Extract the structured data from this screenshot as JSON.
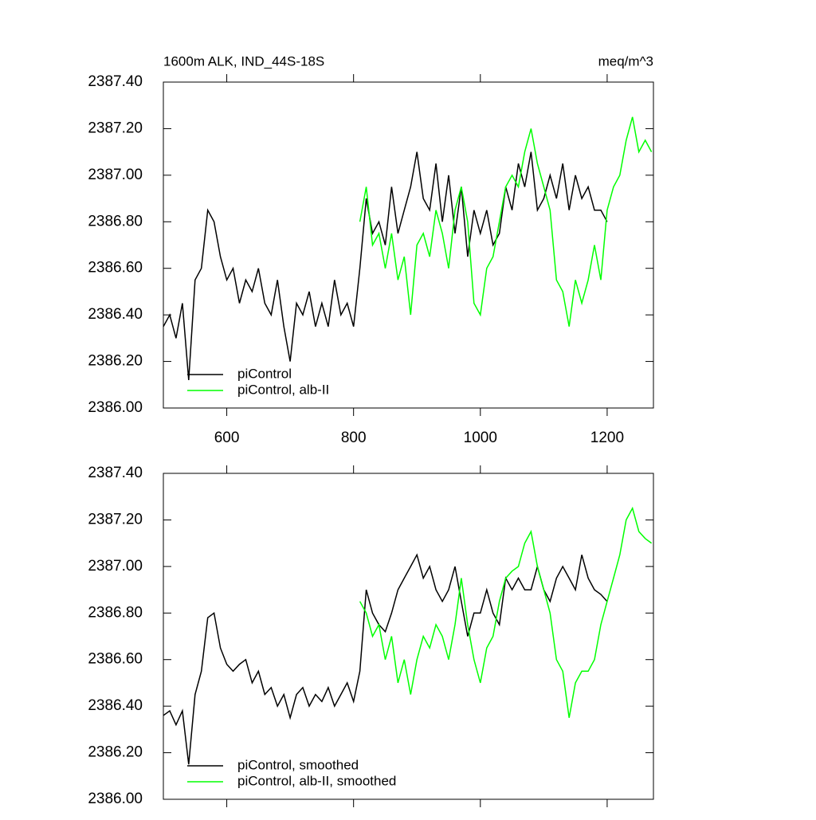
{
  "chart_data": [
    {
      "type": "line",
      "title": "1600m ALK, IND_44S-18S",
      "units": "meq/m^3",
      "xlim": [
        500,
        1273
      ],
      "xticks": [
        600,
        800,
        1000,
        1200
      ],
      "xtick_labels": true,
      "ylim": [
        2386.0,
        2387.4
      ],
      "yticks": [
        {
          "value": 2386.0,
          "label": "2386.00"
        },
        {
          "value": 2386.2,
          "label": "2386.20"
        },
        {
          "value": 2386.4,
          "label": "2386.40"
        },
        {
          "value": 2386.6,
          "label": "2386.60"
        },
        {
          "value": 2386.8,
          "label": "2386.80"
        },
        {
          "value": 2387.0,
          "label": "2387.00"
        },
        {
          "value": 2387.2,
          "label": "2387.20"
        },
        {
          "value": 2387.4,
          "label": "2387.40"
        }
      ],
      "legend": "bottom-left",
      "series": [
        {
          "name": "piControl",
          "color": "#000000",
          "x": [
            500,
            510,
            520,
            530,
            540,
            550,
            560,
            570,
            580,
            590,
            600,
            610,
            620,
            630,
            640,
            650,
            660,
            670,
            680,
            690,
            700,
            710,
            720,
            730,
            740,
            750,
            760,
            770,
            780,
            790,
            800,
            810,
            820,
            830,
            840,
            850,
            860,
            870,
            880,
            890,
            900,
            910,
            920,
            930,
            940,
            950,
            960,
            970,
            980,
            990,
            1000,
            1010,
            1020,
            1030,
            1040,
            1050,
            1060,
            1070,
            1080,
            1090,
            1100,
            1110,
            1120,
            1130,
            1140,
            1150,
            1160,
            1170,
            1180,
            1190,
            1200
          ],
          "values": [
            2386.35,
            2386.4,
            2386.3,
            2386.45,
            2386.12,
            2386.55,
            2386.6,
            2386.85,
            2386.8,
            2386.65,
            2386.55,
            2386.6,
            2386.45,
            2386.55,
            2386.5,
            2386.6,
            2386.45,
            2386.4,
            2386.55,
            2386.35,
            2386.2,
            2386.45,
            2386.4,
            2386.5,
            2386.35,
            2386.45,
            2386.35,
            2386.55,
            2386.4,
            2386.45,
            2386.35,
            2386.6,
            2386.9,
            2386.75,
            2386.8,
            2386.7,
            2386.95,
            2386.75,
            2386.85,
            2386.95,
            2387.1,
            2386.9,
            2386.85,
            2387.05,
            2386.8,
            2387.0,
            2386.75,
            2386.95,
            2386.65,
            2386.85,
            2386.75,
            2386.85,
            2386.7,
            2386.75,
            2386.95,
            2386.85,
            2387.05,
            2386.95,
            2387.1,
            2386.85,
            2386.9,
            2387.0,
            2386.9,
            2387.05,
            2386.85,
            2387.0,
            2386.9,
            2386.95,
            2386.85,
            2386.85,
            2386.8
          ]
        },
        {
          "name": "piControl, alb-II",
          "color": "#00ff00",
          "x": [
            810,
            820,
            830,
            840,
            850,
            860,
            870,
            880,
            890,
            900,
            910,
            920,
            930,
            940,
            950,
            960,
            970,
            980,
            990,
            1000,
            1010,
            1020,
            1030,
            1040,
            1050,
            1060,
            1070,
            1080,
            1090,
            1100,
            1110,
            1120,
            1130,
            1140,
            1150,
            1160,
            1170,
            1180,
            1190,
            1200,
            1210,
            1220,
            1230,
            1240,
            1250,
            1260,
            1270
          ],
          "values": [
            2386.8,
            2386.95,
            2386.7,
            2386.75,
            2386.6,
            2386.75,
            2386.55,
            2386.65,
            2386.4,
            2386.7,
            2386.75,
            2386.65,
            2386.85,
            2386.75,
            2386.6,
            2386.85,
            2386.95,
            2386.8,
            2386.45,
            2386.4,
            2386.6,
            2386.65,
            2386.8,
            2386.95,
            2387.0,
            2386.95,
            2387.1,
            2387.2,
            2387.05,
            2386.95,
            2386.85,
            2386.55,
            2386.5,
            2386.35,
            2386.55,
            2386.45,
            2386.55,
            2386.7,
            2386.55,
            2386.85,
            2386.95,
            2387.0,
            2387.15,
            2387.25,
            2387.1,
            2387.15,
            2387.1
          ]
        }
      ]
    },
    {
      "type": "line",
      "xlim": [
        500,
        1273
      ],
      "xticks": [
        600,
        800,
        1000,
        1200
      ],
      "xtick_labels": false,
      "ylim": [
        2386.0,
        2387.4
      ],
      "yticks": [
        {
          "value": 2386.0,
          "label": "2386.00"
        },
        {
          "value": 2386.2,
          "label": "2386.20"
        },
        {
          "value": 2386.4,
          "label": "2386.40"
        },
        {
          "value": 2386.6,
          "label": "2386.60"
        },
        {
          "value": 2386.8,
          "label": "2386.80"
        },
        {
          "value": 2387.0,
          "label": "2387.00"
        },
        {
          "value": 2387.2,
          "label": "2387.20"
        },
        {
          "value": 2387.4,
          "label": "2387.40"
        }
      ],
      "legend": "bottom-left",
      "series": [
        {
          "name": "piControl, smoothed",
          "color": "#000000",
          "x": [
            500,
            510,
            520,
            530,
            540,
            550,
            560,
            570,
            580,
            590,
            600,
            610,
            620,
            630,
            640,
            650,
            660,
            670,
            680,
            690,
            700,
            710,
            720,
            730,
            740,
            750,
            760,
            770,
            780,
            790,
            800,
            810,
            820,
            830,
            840,
            850,
            860,
            870,
            880,
            890,
            900,
            910,
            920,
            930,
            940,
            950,
            960,
            970,
            980,
            990,
            1000,
            1010,
            1020,
            1030,
            1040,
            1050,
            1060,
            1070,
            1080,
            1090,
            1100,
            1110,
            1120,
            1130,
            1140,
            1150,
            1160,
            1170,
            1180,
            1190,
            1200
          ],
          "values": [
            2386.36,
            2386.38,
            2386.32,
            2386.38,
            2386.15,
            2386.45,
            2386.55,
            2386.78,
            2386.8,
            2386.65,
            2386.58,
            2386.55,
            2386.58,
            2386.6,
            2386.5,
            2386.55,
            2386.45,
            2386.48,
            2386.4,
            2386.45,
            2386.35,
            2386.45,
            2386.48,
            2386.4,
            2386.45,
            2386.42,
            2386.48,
            2386.4,
            2386.45,
            2386.5,
            2386.42,
            2386.55,
            2386.9,
            2386.8,
            2386.75,
            2386.72,
            2386.8,
            2386.9,
            2386.95,
            2387.0,
            2387.05,
            2386.95,
            2387.0,
            2386.9,
            2386.85,
            2386.9,
            2387.0,
            2386.85,
            2386.7,
            2386.8,
            2386.8,
            2386.9,
            2386.8,
            2386.75,
            2386.95,
            2386.9,
            2386.95,
            2386.9,
            2386.9,
            2387.0,
            2386.9,
            2386.85,
            2386.95,
            2387.0,
            2386.95,
            2386.9,
            2387.05,
            2386.95,
            2386.9,
            2386.88,
            2386.85
          ]
        },
        {
          "name": "piControl, alb-II, smoothed",
          "color": "#00ff00",
          "x": [
            810,
            820,
            830,
            840,
            850,
            860,
            870,
            880,
            890,
            900,
            910,
            920,
            930,
            940,
            950,
            960,
            970,
            980,
            990,
            1000,
            1010,
            1020,
            1030,
            1040,
            1050,
            1060,
            1070,
            1080,
            1090,
            1100,
            1110,
            1120,
            1130,
            1140,
            1150,
            1160,
            1170,
            1180,
            1190,
            1200,
            1210,
            1220,
            1230,
            1240,
            1250,
            1260,
            1270
          ],
          "values": [
            2386.85,
            2386.8,
            2386.7,
            2386.75,
            2386.6,
            2386.7,
            2386.5,
            2386.6,
            2386.45,
            2386.6,
            2386.7,
            2386.65,
            2386.75,
            2386.7,
            2386.6,
            2386.75,
            2386.95,
            2386.75,
            2386.6,
            2386.5,
            2386.65,
            2386.7,
            2386.85,
            2386.95,
            2386.98,
            2387.0,
            2387.1,
            2387.15,
            2387.0,
            2386.9,
            2386.8,
            2386.6,
            2386.55,
            2386.35,
            2386.5,
            2386.55,
            2386.55,
            2386.6,
            2386.75,
            2386.85,
            2386.95,
            2387.05,
            2387.2,
            2387.25,
            2387.15,
            2387.12,
            2387.1
          ]
        }
      ]
    }
  ]
}
